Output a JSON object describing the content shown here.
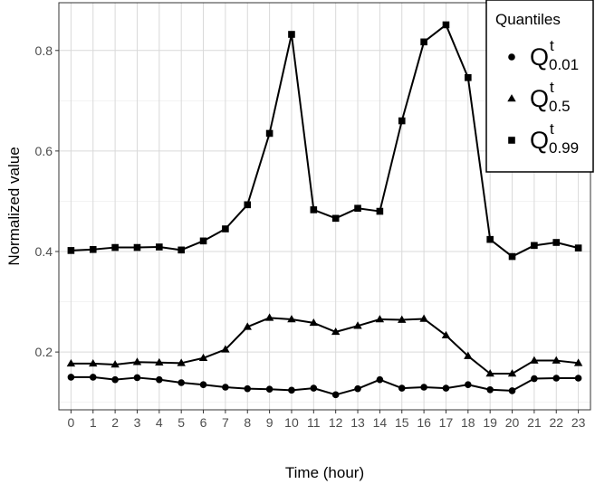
{
  "chart_data": {
    "type": "line",
    "title": "",
    "xlabel": "Time (hour)",
    "ylabel": "Normalized value",
    "x": [
      0,
      1,
      2,
      3,
      4,
      5,
      6,
      7,
      8,
      9,
      10,
      11,
      12,
      13,
      14,
      15,
      16,
      17,
      18,
      19,
      20,
      21,
      22,
      23
    ],
    "x_tick_labels": [
      "0",
      "1",
      "2",
      "3",
      "4",
      "5",
      "6",
      "7",
      "8",
      "9",
      "10",
      "11",
      "12",
      "13",
      "14",
      "15",
      "16",
      "17",
      "18",
      "19",
      "20",
      "21",
      "22",
      "23"
    ],
    "xlim": [
      -0.55,
      23.55
    ],
    "ylim": [
      0.085,
      0.895
    ],
    "y_ticks": [
      0.2,
      0.4,
      0.6,
      0.8
    ],
    "y_tick_labels": [
      "0.2",
      "0.4",
      "0.6",
      "0.8"
    ],
    "grid": true,
    "legend": {
      "title": "Quantiles",
      "placement": "top-right",
      "entries": [
        {
          "main": "Q",
          "sup": "t",
          "sub": "0.01",
          "marker": "circle"
        },
        {
          "main": "Q",
          "sup": "t",
          "sub": "0.5",
          "marker": "triangle"
        },
        {
          "main": "Q",
          "sup": "t",
          "sub": "0.99",
          "marker": "square"
        }
      ]
    },
    "series": [
      {
        "marker": "circle",
        "values": [
          0.15,
          0.15,
          0.145,
          0.149,
          0.145,
          0.139,
          0.135,
          0.13,
          0.127,
          0.126,
          0.124,
          0.128,
          0.115,
          0.127,
          0.145,
          0.128,
          0.13,
          0.128,
          0.135,
          0.125,
          0.123,
          0.147,
          0.148,
          0.148
        ]
      },
      {
        "marker": "triangle",
        "values": [
          0.177,
          0.177,
          0.175,
          0.18,
          0.179,
          0.178,
          0.188,
          0.205,
          0.25,
          0.268,
          0.265,
          0.258,
          0.24,
          0.252,
          0.265,
          0.264,
          0.266,
          0.233,
          0.192,
          0.157,
          0.157,
          0.183,
          0.183,
          0.178
        ]
      },
      {
        "marker": "square",
        "values": [
          0.402,
          0.404,
          0.408,
          0.408,
          0.409,
          0.403,
          0.421,
          0.445,
          0.493,
          0.635,
          0.832,
          0.483,
          0.466,
          0.486,
          0.48,
          0.66,
          0.817,
          0.851,
          0.746,
          0.424,
          0.39,
          0.412,
          0.418,
          0.407
        ]
      }
    ]
  },
  "colors": {
    "background": "#ffffff",
    "grid_major": "#d9d9d9",
    "grid_minor": "#ececec",
    "panel_border": "#333333",
    "series": "#000000",
    "tick_label": "#4d4d4d"
  }
}
